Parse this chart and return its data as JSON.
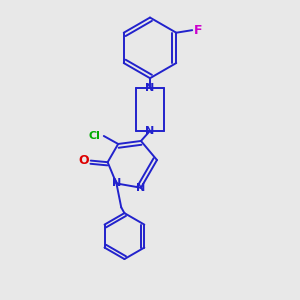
{
  "background_color": "#e8e8e8",
  "bond_color": "#2222cc",
  "bond_width": 1.4,
  "atom_colors": {
    "N": "#2222cc",
    "O": "#dd0000",
    "Cl": "#00aa00",
    "F": "#cc00cc",
    "C": "#2222cc"
  },
  "figsize": [
    3.0,
    3.0
  ],
  "dpi": 100
}
